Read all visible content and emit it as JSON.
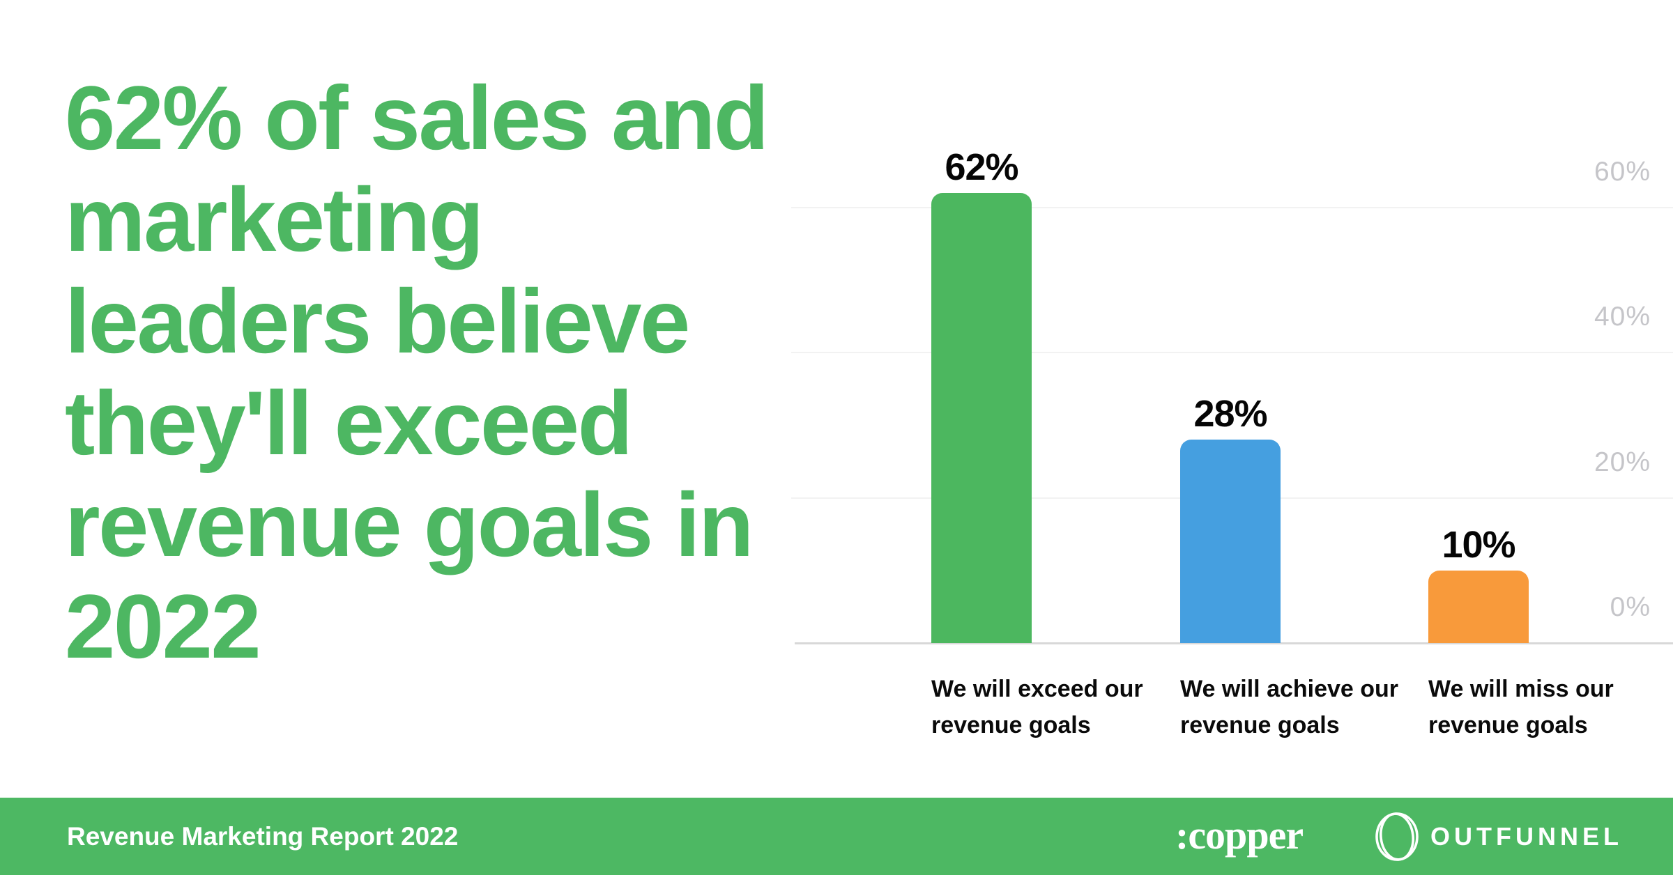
{
  "headline": {
    "full_text": "62% of sales and marketing leaders believe they'll exceed revenue goals in 2022",
    "lines": [
      "62% of sales and",
      "marketing",
      "leaders believe",
      "they'll exceed",
      "revenue goals in",
      "2022"
    ],
    "color": "#4DB762"
  },
  "chart_data": {
    "type": "bar",
    "title": "",
    "xlabel": "",
    "ylabel": "",
    "categories": [
      "We will exceed our revenue goals",
      "We will achieve our revenue goals",
      "We will miss our revenue goals"
    ],
    "category_lines": [
      [
        "We will exceed our",
        "revenue goals"
      ],
      [
        "We will achieve our",
        "revenue goals"
      ],
      [
        "We will miss our",
        "revenue goals"
      ]
    ],
    "values": [
      62,
      28,
      10
    ],
    "value_labels": [
      "62%",
      "28%",
      "10%"
    ],
    "bar_colors": [
      "#4CB75F",
      "#459FE0",
      "#F89A3B"
    ],
    "ylim": [
      0,
      65
    ],
    "grid": true,
    "gridline_color": "#F2F2F2",
    "baseline_color": "#D8D8D8",
    "legend": "none",
    "y_axis": {
      "position": "right",
      "ticks": [
        "60%",
        "40%",
        "20%",
        "0%"
      ],
      "tick_values": [
        60,
        40,
        20,
        0
      ],
      "tick_color": "#C5C5C9"
    }
  },
  "footer": {
    "background": "#4DB863",
    "report_label": "Revenue Marketing Report 2022",
    "copper_logo_text": ":copper",
    "outfunnel_logo_text": "OUTFUNNEL"
  }
}
